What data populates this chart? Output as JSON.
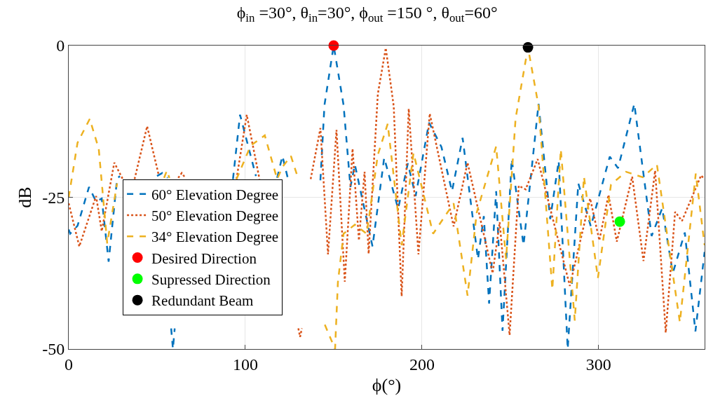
{
  "chart_data": {
    "type": "line",
    "title": "ϕ$_{in}$ =30°, θ$_{in}$=30°, ϕ$_{out}$ =150 °, θ$_{out}$=60°",
    "xlabel": "ϕ(°)",
    "ylabel": "dB",
    "xlim": [
      0,
      360
    ],
    "xticks": [
      0,
      100,
      200,
      300
    ],
    "ylim": [
      -50,
      0
    ],
    "yticks": [
      -50,
      -25,
      0
    ],
    "grid": true,
    "legend": "left",
    "series": [
      {
        "name": "60° Elevation Degree",
        "color": "#0072bd",
        "line_style": "dashed",
        "x": [
          0,
          0.8,
          5,
          11.5,
          15.5,
          18.7,
          22.6,
          27.4,
          29,
          30.5,
          50,
          53,
          56,
          57.5,
          58,
          59,
          60,
          61,
          93,
          97,
          106,
          107,
          118,
          121,
          124,
          125,
          142.5,
          144.8,
          150,
          155.6,
          159.5,
          162,
          172,
          178.6,
          186.5,
          192,
          196.4,
          204,
          211,
          217,
          223,
          231.7,
          235,
          238,
          242,
          245.6,
          250.8,
          257.5,
          266,
          272.6,
          277.4,
          282.5,
          288.5,
          295.6,
          306.3,
          311,
          320.2,
          330,
          336,
          342,
          348.8,
          354.8,
          360
        ],
        "values": [
          -30.3,
          -31,
          -29.7,
          -23.3,
          -25.7,
          -25.2,
          -35.6,
          -21.9,
          -21.5,
          null,
          -21.5,
          -21,
          -21.8,
          null,
          -46.6,
          -50,
          -46.6,
          null,
          -22,
          -11.4,
          -21.5,
          null,
          -21.8,
          -18.2,
          -21.8,
          null,
          -22.2,
          -9.8,
          0,
          -9.8,
          -23.3,
          -19.6,
          -33.1,
          -18.5,
          -26.9,
          -19.4,
          -24.8,
          -12.7,
          -16.7,
          -24,
          -15.2,
          -35.2,
          -28.1,
          -42.5,
          -24,
          -47,
          -18.7,
          -32.9,
          -9.6,
          -28.6,
          -19,
          -50,
          -22.7,
          -29.8,
          -18.3,
          -20.2,
          -9.6,
          -31.4,
          -26.8,
          -37.5,
          -30.8,
          -47.1,
          -34
        ]
      },
      {
        "name": "50° Elevation Degree",
        "color": "#d95319",
        "line_style": "dotted",
        "x": [
          0,
          6,
          15.5,
          18.7,
          25.8,
          30.6,
          31,
          37.3,
          44.4,
          51,
          52,
          62,
          64,
          66,
          67,
          95,
          100.8,
          108,
          109,
          130,
          131,
          132,
          133,
          137,
          142.5,
          146.8,
          151.6,
          156.3,
          160.7,
          164.3,
          167.5,
          169.8,
          175,
          179.5,
          184,
          188.5,
          192.5,
          198,
          204.4,
          217.9,
          225.8,
          240,
          244,
          249.6,
          254.8,
          258.7,
          265.5,
          283.7,
          295.2,
          300.4,
          305.6,
          310.3,
          319,
          325.4,
          332,
          338,
          343.3,
          347.2,
          358,
          360
        ],
        "values": [
          -26,
          -33.1,
          -24.8,
          -30.6,
          -19.3,
          -22,
          null,
          -22,
          -13.3,
          -21.4,
          null,
          -21.8,
          -21,
          -21.8,
          null,
          -22,
          -11.4,
          -22,
          null,
          -46.6,
          -48,
          -46.6,
          null,
          -22,
          -13.6,
          -34.4,
          -13.9,
          -38.9,
          -17,
          -32.1,
          -20.8,
          -34.3,
          -8,
          -0.4,
          -10,
          -41.3,
          -10.4,
          -34.4,
          -11.2,
          -29.8,
          -19.3,
          -37.5,
          -29.1,
          -47.7,
          -23.1,
          -23.7,
          -18.7,
          -39.6,
          -25.2,
          -32.1,
          -24.6,
          -32.3,
          -21.6,
          -35.5,
          -20.6,
          -47.3,
          -27.4,
          -28.9,
          -21.4,
          -22
        ]
      },
      {
        "name": "34° Elevation Degree",
        "color": "#edb120",
        "line_style": "dashed",
        "x": [
          0,
          5,
          11.9,
          17,
          21.8,
          27.4,
          28,
          54,
          55.6,
          57,
          58,
          95,
          103,
          111,
          118,
          121,
          125.8,
          130,
          131,
          145,
          150.8,
          152.4,
          155.6,
          162,
          168.7,
          175,
          180.6,
          188.5,
          195.2,
          206.3,
          217.9,
          225.8,
          231,
          242,
          247.6,
          253,
          260,
          266,
          273.8,
          278.6,
          286.5,
          291.7,
          299.6,
          307,
          315.5,
          325,
          333,
          346,
          355,
          360
        ],
        "values": [
          -25,
          -16,
          -12.1,
          -17,
          -32.6,
          -22.7,
          null,
          -21.8,
          -20.6,
          -21.8,
          null,
          -22,
          -16.5,
          -14.8,
          -22,
          -20,
          -18.2,
          -22,
          null,
          -46,
          -50,
          -39,
          -31,
          -29.5,
          -31,
          -18,
          -12.9,
          -32.9,
          -17.7,
          -31,
          -26,
          -41.2,
          -27.5,
          -16.6,
          -35.2,
          -12,
          -0.3,
          -10,
          -40.2,
          -17.1,
          -45.3,
          -21.6,
          -38.3,
          -22.9,
          -20.8,
          -21.7,
          -19.6,
          -45.6,
          -21.1,
          -32.9
        ]
      },
      {
        "name": "Desired Direction",
        "type": "scatter",
        "marker": "circle",
        "color": "#ff0000",
        "x": [
          150
        ],
        "values": [
          0
        ]
      },
      {
        "name": "Supressed Direction",
        "type": "scatter",
        "marker": "circle",
        "color": "#00ff00",
        "x": [
          312
        ],
        "values": [
          -29
        ]
      },
      {
        "name": "Redundant Beam",
        "type": "scatter",
        "marker": "circle",
        "color": "#000000",
        "x": [
          260
        ],
        "values": [
          -0.3
        ]
      }
    ]
  }
}
